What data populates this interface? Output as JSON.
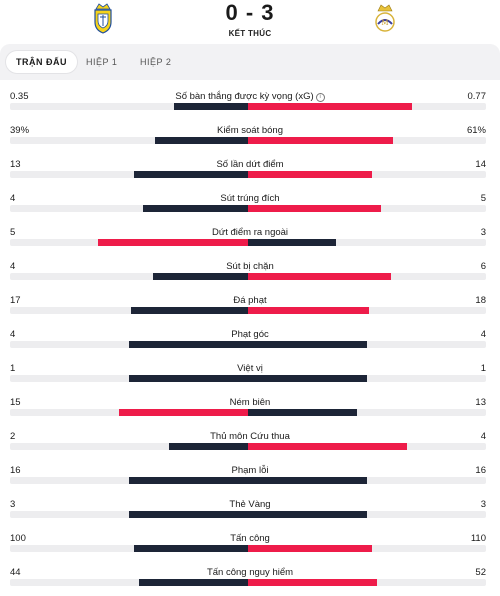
{
  "match": {
    "score": "0 - 3",
    "status": "KẾT THÚC",
    "home_team_icon": "cadiz-crest-icon",
    "away_team_icon": "real-madrid-crest-icon"
  },
  "tabs": [
    {
      "label": "TRẬN ĐẤU",
      "active": true
    },
    {
      "label": "HIỆP 1",
      "active": false
    },
    {
      "label": "HIỆP 2",
      "active": false
    }
  ],
  "colors": {
    "dark_bar": "#1d2537",
    "red_bar": "#ee1c4a",
    "track": "#ededef"
  },
  "stats": [
    {
      "name": "Số bàn thắng được kỳ vọng (xG)",
      "home": "0.35",
      "away": "0.77",
      "home_frac": 0.31,
      "away_frac": 0.69,
      "leader": "away",
      "info_icon": true
    },
    {
      "name": "Kiểm soát bóng",
      "home": "39%",
      "away": "61%",
      "home_frac": 0.39,
      "away_frac": 0.61,
      "leader": "away"
    },
    {
      "name": "Số lần dứt điểm",
      "home": "13",
      "away": "14",
      "home_frac": 0.48,
      "away_frac": 0.52,
      "leader": "away"
    },
    {
      "name": "Sút trúng đích",
      "home": "4",
      "away": "5",
      "home_frac": 0.44,
      "away_frac": 0.56,
      "leader": "away"
    },
    {
      "name": "Dứt điểm ra ngoài",
      "home": "5",
      "away": "3",
      "home_frac": 0.63,
      "away_frac": 0.37,
      "leader": "home"
    },
    {
      "name": "Sút bị chặn",
      "home": "4",
      "away": "6",
      "home_frac": 0.4,
      "away_frac": 0.6,
      "leader": "away"
    },
    {
      "name": "Đá phạt",
      "home": "17",
      "away": "18",
      "home_frac": 0.49,
      "away_frac": 0.51,
      "leader": "away"
    },
    {
      "name": "Phạt góc",
      "home": "4",
      "away": "4",
      "home_frac": 0.5,
      "away_frac": 0.5,
      "leader": "none"
    },
    {
      "name": "Việt vị",
      "home": "1",
      "away": "1",
      "home_frac": 0.5,
      "away_frac": 0.5,
      "leader": "none"
    },
    {
      "name": "Ném biên",
      "home": "15",
      "away": "13",
      "home_frac": 0.54,
      "away_frac": 0.46,
      "leader": "home"
    },
    {
      "name": "Thủ môn Cứu thua",
      "home": "2",
      "away": "4",
      "home_frac": 0.33,
      "away_frac": 0.67,
      "leader": "away"
    },
    {
      "name": "Phạm lỗi",
      "home": "16",
      "away": "16",
      "home_frac": 0.5,
      "away_frac": 0.5,
      "leader": "none"
    },
    {
      "name": "Thẻ Vàng",
      "home": "3",
      "away": "3",
      "home_frac": 0.5,
      "away_frac": 0.5,
      "leader": "none"
    },
    {
      "name": "Tấn công",
      "home": "100",
      "away": "110",
      "home_frac": 0.48,
      "away_frac": 0.52,
      "leader": "away"
    },
    {
      "name": "Tấn công nguy hiểm",
      "home": "44",
      "away": "52",
      "home_frac": 0.46,
      "away_frac": 0.54,
      "leader": "away"
    }
  ]
}
